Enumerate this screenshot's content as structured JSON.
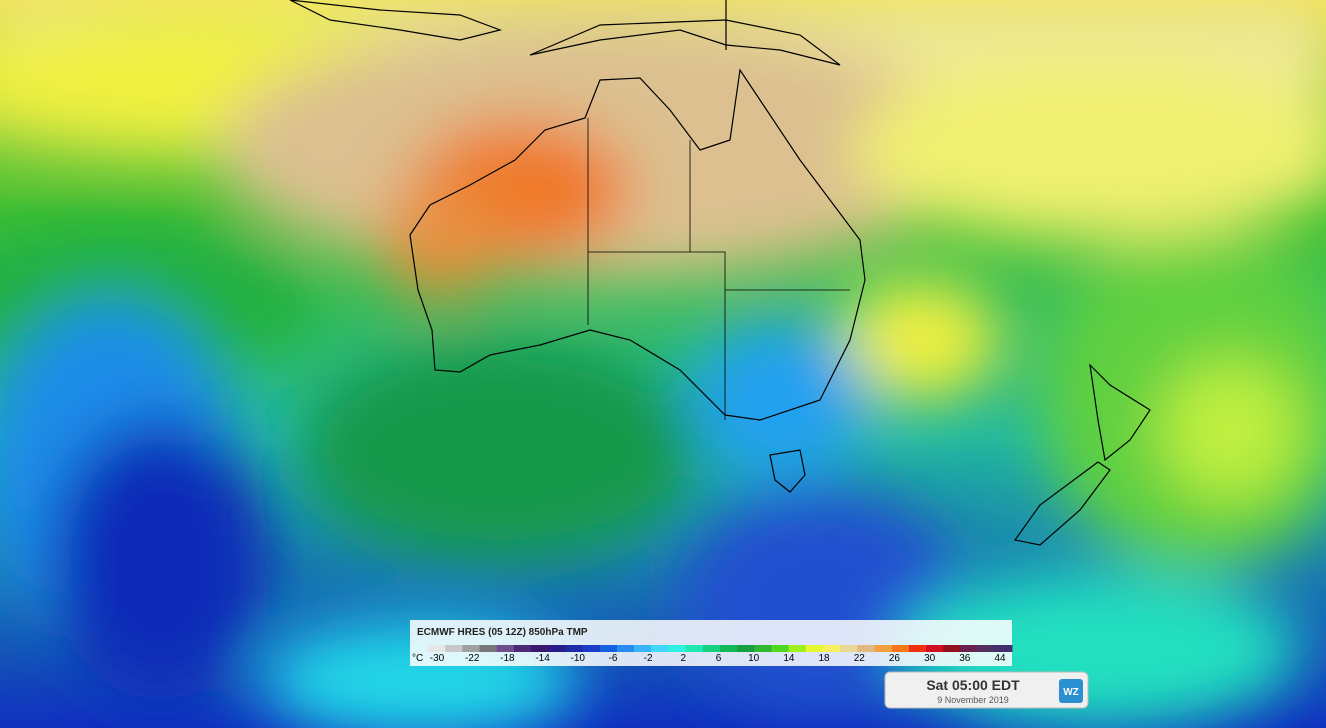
{
  "legend": {
    "title": "ECMWF HRES (05 12Z) 850hPa TMP",
    "unit": "°C",
    "labels": [
      "-30",
      "-22",
      "-18",
      "-14",
      "-10",
      "-6",
      "-2",
      "2",
      "6",
      "10",
      "14",
      "18",
      "22",
      "26",
      "30",
      "36",
      "44"
    ],
    "colors": [
      "#e6e6e6",
      "#c8c8c8",
      "#a0a0a0",
      "#787878",
      "#6e4f8c",
      "#4b2a78",
      "#3a1870",
      "#2a1a8c",
      "#1f2aa8",
      "#1a3cc8",
      "#1560e0",
      "#2a8af0",
      "#38b4f8",
      "#40d8f8",
      "#30f0e0",
      "#20e8b0",
      "#18d080",
      "#10b858",
      "#18a040",
      "#30b830",
      "#50d820",
      "#a0f020",
      "#e8f830",
      "#f8f060",
      "#e8d898",
      "#e0b880",
      "#f0a040",
      "#f87818",
      "#f03010",
      "#d01020",
      "#901020",
      "#6a2050",
      "#503060",
      "#403070"
    ]
  },
  "time": {
    "label": "Sat 05:00 EDT",
    "date": "9 November 2019",
    "logo": "WZ"
  }
}
